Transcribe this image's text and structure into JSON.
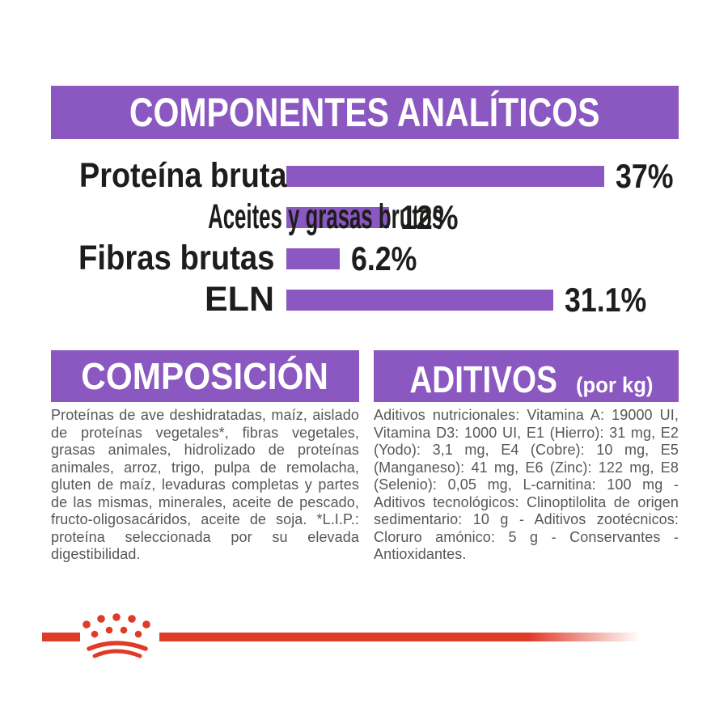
{
  "colors": {
    "purple": "#8a58c0",
    "red": "#e03a28",
    "heading_text": "#ffffff",
    "label_text": "#1d1d1b",
    "body_text": "#57575a",
    "background": "#ffffff"
  },
  "analytical": {
    "title": "COMPONENTES ANALÍTICOS",
    "rows": [
      {
        "label": "Proteína bruta",
        "value": "37%",
        "percent": 37
      },
      {
        "label": "Aceites y grasas brutos",
        "value": "12%",
        "percent": 12
      },
      {
        "label": "Fibras brutas",
        "value": "6.2%",
        "percent": 6.2
      },
      {
        "label": "ELN",
        "value": "31.1%",
        "percent": 31.1
      }
    ]
  },
  "chart_data": {
    "type": "bar",
    "orientation": "horizontal",
    "title": "COMPONENTES ANALÍTICOS",
    "categories": [
      "Proteína bruta",
      "Aceites y grasas brutos",
      "Fibras brutas",
      "ELN"
    ],
    "values": [
      37,
      12,
      6.2,
      31.1
    ],
    "value_labels": [
      "37%",
      "12%",
      "6.2%",
      "31.1%"
    ],
    "unit": "%",
    "xlim": [
      0,
      40
    ],
    "grid": false,
    "bar_color": "#8a58c0"
  },
  "composition": {
    "title": "COMPOSICIÓN",
    "body": "Proteínas de ave deshidratadas, maíz, aislado de proteínas vegetales*, fibras vegetales, grasas animales, hidrolizado de proteínas animales, arroz, trigo, pulpa de remolacha, gluten de maíz, levaduras completas y partes de las mismas, minerales, aceite de pescado, fructo-oligosacáridos, aceite de soja. *L.I.P.: proteína seleccionada por su elevada digestibilidad."
  },
  "additives": {
    "title": "ADITIVOS",
    "subtitle": "(por kg)",
    "body": "Aditivos nutricionales: Vitamina A: 19000 UI, Vitamina D3: 1000 UI, E1 (Hierro): 31 mg, E2 (Yodo): 3,1 mg, E4 (Cobre): 10 mg, E5 (Manganeso): 41 mg, E6 (Zinc): 122 mg, E8 (Selenio): 0,05 mg, L-carnitina: 100 mg - Aditivos tecnológicos: Clinoptilolita de origen sedimentario: 10 g - Aditivos zootécnicos: Cloruro amónico: 5 g - Conservantes - Antioxidantes."
  },
  "footer": {
    "brand_logo": "royal-canin-crown"
  }
}
